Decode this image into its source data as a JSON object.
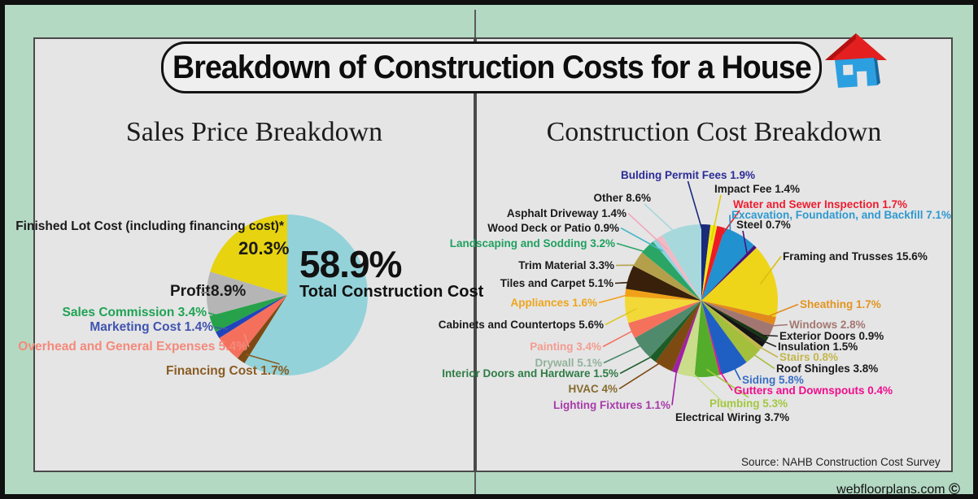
{
  "page": {
    "title": "Breakdown of Construction Costs for a House",
    "source_note": "Source: NAHB Construction Cost Survey",
    "watermark_text": "webfloorplans.com",
    "watermark_symbol": "©",
    "colors": {
      "frame_bg": "#b4d9c3",
      "panel_bg": "#e5e5e6",
      "frame_border": "#101010"
    }
  },
  "left_panel": {
    "title": "Sales Price Breakdown"
  },
  "right_panel": {
    "title": "Construction Cost Breakdown"
  },
  "chart_data": [
    {
      "type": "pie",
      "title": "Sales Price Breakdown",
      "unit": "%",
      "start_angle_deg": 0,
      "legend_position": "around-labels",
      "slices": [
        {
          "name": "Total Construction Cost",
          "value": 58.9,
          "color": "#93d2d9",
          "label_color": "#111111"
        },
        {
          "name": "Financing Cost",
          "value": 1.7,
          "color": "#7d4a16",
          "label_color": "#8a5c22",
          "line_color": "#8a5c22"
        },
        {
          "name": "Overhead and General Expenses",
          "value": 5.4,
          "color": "#f4705c",
          "label_color": "#f48a7a",
          "line_color": "#f4897a"
        },
        {
          "name": "Marketing Cost",
          "value": 1.4,
          "color": "#2144bc",
          "label_color": "#4054ae",
          "line_color": "#4054ae"
        },
        {
          "name": "Sales Commission",
          "value": 3.4,
          "color": "#27a24b",
          "label_color": "#1fa353",
          "line_color": "#1fa353"
        },
        {
          "name": "Profit",
          "value": 8.9,
          "color": "#b5b5b5",
          "label_color": "#1a1a1a"
        },
        {
          "name": "Finished Lot Cost (including financing cost)*",
          "value": 20.3,
          "color": "#e7d30f",
          "label_color": "#1a1a1a"
        }
      ]
    },
    {
      "type": "pie",
      "title": "Construction Cost Breakdown",
      "unit": "%",
      "start_angle_deg": 0,
      "legend_position": "around-labels",
      "slices": [
        {
          "name": "Bulding Permit Fees",
          "value": 1.9,
          "color": "#1b2a7a",
          "label_color": "#2c2c96",
          "line_color": "#1b2a7a"
        },
        {
          "name": "Impact Fee",
          "value": 1.4,
          "color": "#f2e713",
          "label_color": "#1a1a1a",
          "line_color": "#e0d000"
        },
        {
          "name": "Water and Sewer Inspection",
          "value": 1.7,
          "color": "#ed1c24",
          "label_color": "#ed1c2e",
          "line_color": "#ed1c24"
        },
        {
          "name": "Excavation, Foundation, and Backfill",
          "value": 7.1,
          "color": "#2191d0",
          "label_color": "#2e99cf",
          "line_color": "#2191d0"
        },
        {
          "name": "Steel",
          "value": 0.7,
          "color": "#4b1277",
          "label_color": "#1a1a1a",
          "line_color": "#4b1277"
        },
        {
          "name": "Framing and Trusses",
          "value": 15.6,
          "color": "#eed51a",
          "label_color": "#1a1a1a",
          "line_color": "#d9c00e"
        },
        {
          "name": "Sheathing",
          "value": 1.7,
          "color": "#e2891d",
          "label_color": "#e2941f",
          "line_color": "#e2891d"
        },
        {
          "name": "Windows",
          "value": 2.8,
          "color": "#a37771",
          "label_color": "#a37771",
          "line_color": "#a37771"
        },
        {
          "name": "Exterior Doors",
          "value": 0.9,
          "color": "#173513",
          "label_color": "#1a1a1a",
          "line_color": "#222222"
        },
        {
          "name": "Insulation",
          "value": 1.5,
          "color": "#141414",
          "label_color": "#1a1a1a",
          "line_color": "#222222"
        },
        {
          "name": "Stairs",
          "value": 0.8,
          "color": "#c3b64b",
          "label_color": "#c3b64b",
          "line_color": "#c3b64b"
        },
        {
          "name": "Roof Shingles",
          "value": 3.8,
          "color": "#a3bf3c",
          "label_color": "#1a1a1a",
          "line_color": "#a3bf3c"
        },
        {
          "name": "Siding",
          "value": 5.8,
          "color": "#1f5fc4",
          "label_color": "#3a6fc4",
          "line_color": "#1f5fc4"
        },
        {
          "name": "Gutters and Downspouts",
          "value": 0.4,
          "color": "#f20c8c",
          "label_color": "#f20c8c",
          "line_color": "#f20c8c"
        },
        {
          "name": "Plumbing",
          "value": 5.3,
          "color": "#54ad2a",
          "label_color": "#a3c83f",
          "line_color": "#a3c83f"
        },
        {
          "name": "Electrical Wiring",
          "value": 3.7,
          "color": "#c9dd8b",
          "label_color": "#1a1a1a",
          "line_color": "#c9dd8b"
        },
        {
          "name": "Lighting Fixtures",
          "value": 1.1,
          "color": "#a11fa8",
          "label_color": "#a83aa8",
          "line_color": "#a11fa8"
        },
        {
          "name": "HVAC",
          "value": 4.0,
          "color": "#7d4a11",
          "label_color": "#866b2d",
          "line_color": "#7d4a11"
        },
        {
          "name": "Interior Doors and Hardware",
          "value": 1.5,
          "color": "#1d5c26",
          "label_color": "#2f7d45",
          "line_color": "#1d5c26"
        },
        {
          "name": "Drywall",
          "value": 5.1,
          "color": "#4f8a6d",
          "label_color": "#93b39b",
          "line_color": "#4f8a6d"
        },
        {
          "name": "Painting",
          "value": 3.4,
          "color": "#f4715c",
          "label_color": "#f49c8e",
          "line_color": "#f4715c"
        },
        {
          "name": "Cabinets and Countertops",
          "value": 5.6,
          "color": "#f2d938",
          "label_color": "#1a1a1a",
          "line_color": "#e0c820"
        },
        {
          "name": "Appliances",
          "value": 1.6,
          "color": "#f1a118",
          "label_color": "#eda51c",
          "line_color": "#f1a118"
        },
        {
          "name": "Tiles and Carpet",
          "value": 5.1,
          "color": "#38200a",
          "label_color": "#1a1a1a",
          "line_color": "#38200a"
        },
        {
          "name": "Trim Material",
          "value": 3.3,
          "color": "#b4a04a",
          "label_color": "#1a1a1a",
          "line_color": "#b4a04a"
        },
        {
          "name": "Landscaping and Sodding",
          "value": 3.2,
          "color": "#2aa565",
          "label_color": "#1fa05e",
          "line_color": "#2aa565"
        },
        {
          "name": "Wood Deck or Patio",
          "value": 0.9,
          "color": "#8fd4e2",
          "label_color": "#1a1a1a",
          "line_color": "#49b8c8"
        },
        {
          "name": "Asphalt Driveway",
          "value": 1.4,
          "color": "#f2b9c5",
          "label_color": "#1a1a1a",
          "line_color": "#f0a8bc"
        },
        {
          "name": "Other",
          "value": 8.6,
          "color": "#a7d8dc",
          "label_color": "#1a1a1a",
          "line_color": "#a7d8dc"
        }
      ]
    }
  ]
}
